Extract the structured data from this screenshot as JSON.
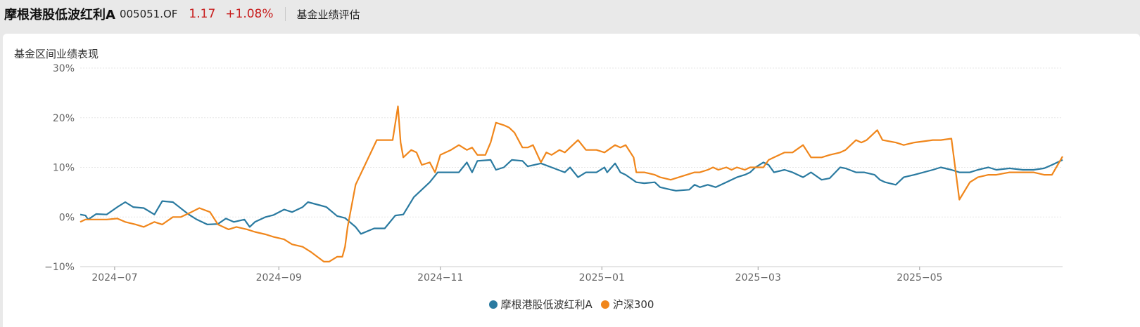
{
  "header": {
    "fund_name": "摩根港股低波红利A",
    "fund_code": "005051.OF",
    "nav": "1.17",
    "change": "+1.08%",
    "section_tab": "基金业绩评估"
  },
  "card": {
    "title": "基金区间业绩表现"
  },
  "colors": {
    "fund": "#2a7aa0",
    "index": "#f0861b",
    "up": "#c81e1e"
  },
  "chart_data": {
    "type": "line",
    "x_range": [
      "2024-06-18",
      "2025-06-24"
    ],
    "ylim": [
      -10,
      30
    ],
    "yticks": [
      30,
      20,
      10,
      0,
      -10
    ],
    "ytick_labels": [
      "30%",
      "20%",
      "10%",
      "0%",
      "−10%"
    ],
    "xticks": [
      "2024-07-01",
      "2024-09-01",
      "2024-11-01",
      "2025-01-01",
      "2025-03-01",
      "2025-05-01"
    ],
    "xtick_labels": [
      "2024−07",
      "2024−09",
      "2024−11",
      "2025−01",
      "2025−03",
      "2025−05"
    ],
    "grid": true,
    "legend_position": "bottom-center",
    "series": [
      {
        "name": "摩根港股低波红利A",
        "color": "#2a7aa0",
        "points": [
          [
            "2024-06-18",
            0.5
          ],
          [
            "2024-06-20",
            0.3
          ],
          [
            "2024-06-21",
            -0.5
          ],
          [
            "2024-06-24",
            0.6
          ],
          [
            "2024-06-28",
            0.5
          ],
          [
            "2024-07-02",
            2.0
          ],
          [
            "2024-07-05",
            3.0
          ],
          [
            "2024-07-08",
            2.0
          ],
          [
            "2024-07-12",
            1.8
          ],
          [
            "2024-07-16",
            0.5
          ],
          [
            "2024-07-19",
            3.2
          ],
          [
            "2024-07-23",
            3.0
          ],
          [
            "2024-07-29",
            0.5
          ],
          [
            "2024-08-01",
            -0.5
          ],
          [
            "2024-08-05",
            -1.5
          ],
          [
            "2024-08-09",
            -1.4
          ],
          [
            "2024-08-12",
            -0.3
          ],
          [
            "2024-08-15",
            -1.0
          ],
          [
            "2024-08-19",
            -0.5
          ],
          [
            "2024-08-21",
            -2.0
          ],
          [
            "2024-08-23",
            -1.0
          ],
          [
            "2024-08-27",
            0.0
          ],
          [
            "2024-08-30",
            0.4
          ],
          [
            "2024-09-03",
            1.5
          ],
          [
            "2024-09-06",
            1.0
          ],
          [
            "2024-09-10",
            2.0
          ],
          [
            "2024-09-12",
            3.0
          ],
          [
            "2024-09-17",
            2.3
          ],
          [
            "2024-09-19",
            2.0
          ],
          [
            "2024-09-23",
            0.2
          ],
          [
            "2024-09-26",
            -0.2
          ],
          [
            "2024-09-30",
            -2.0
          ],
          [
            "2024-10-02",
            -3.4
          ],
          [
            "2024-10-07",
            -2.3
          ],
          [
            "2024-10-11",
            -2.3
          ],
          [
            "2024-10-15",
            0.3
          ],
          [
            "2024-10-18",
            0.5
          ],
          [
            "2024-10-22",
            4.0
          ],
          [
            "2024-10-25",
            5.5
          ],
          [
            "2024-10-28",
            7.0
          ],
          [
            "2024-10-31",
            9.0
          ],
          [
            "2024-11-08",
            9.0
          ],
          [
            "2024-11-11",
            11.0
          ],
          [
            "2024-11-13",
            9.0
          ],
          [
            "2024-11-15",
            11.3
          ],
          [
            "2024-11-20",
            11.5
          ],
          [
            "2024-11-22",
            9.5
          ],
          [
            "2024-11-25",
            10.0
          ],
          [
            "2024-11-28",
            11.5
          ],
          [
            "2024-12-02",
            11.3
          ],
          [
            "2024-12-04",
            10.2
          ],
          [
            "2024-12-09",
            10.8
          ],
          [
            "2024-12-13",
            10.0
          ],
          [
            "2024-12-18",
            9.0
          ],
          [
            "2024-12-20",
            10.0
          ],
          [
            "2024-12-23",
            8.0
          ],
          [
            "2024-12-26",
            9.0
          ],
          [
            "2024-12-30",
            9.0
          ],
          [
            "2025-01-02",
            10.0
          ],
          [
            "2025-01-03",
            9.0
          ],
          [
            "2025-01-06",
            10.8
          ],
          [
            "2025-01-08",
            9.0
          ],
          [
            "2025-01-10",
            8.5
          ],
          [
            "2025-01-14",
            7.0
          ],
          [
            "2025-01-17",
            6.8
          ],
          [
            "2025-01-21",
            7.0
          ],
          [
            "2025-01-23",
            6.0
          ],
          [
            "2025-01-27",
            5.5
          ],
          [
            "2025-01-29",
            5.3
          ],
          [
            "2025-02-03",
            5.5
          ],
          [
            "2025-02-05",
            6.5
          ],
          [
            "2025-02-07",
            6.0
          ],
          [
            "2025-02-10",
            6.5
          ],
          [
            "2025-02-13",
            6.0
          ],
          [
            "2025-02-17",
            7.0
          ],
          [
            "2025-02-21",
            8.0
          ],
          [
            "2025-02-24",
            8.5
          ],
          [
            "2025-02-26",
            9.0
          ],
          [
            "2025-02-28",
            10.0
          ],
          [
            "2025-03-03",
            11.0
          ],
          [
            "2025-03-05",
            10.5
          ],
          [
            "2025-03-07",
            9.0
          ],
          [
            "2025-03-11",
            9.5
          ],
          [
            "2025-03-14",
            9.0
          ],
          [
            "2025-03-18",
            8.0
          ],
          [
            "2025-03-21",
            9.0
          ],
          [
            "2025-03-25",
            7.5
          ],
          [
            "2025-03-28",
            7.8
          ],
          [
            "2025-04-01",
            10.0
          ],
          [
            "2025-04-03",
            9.8
          ],
          [
            "2025-04-07",
            9.0
          ],
          [
            "2025-04-10",
            9.0
          ],
          [
            "2025-04-14",
            8.5
          ],
          [
            "2025-04-16",
            7.5
          ],
          [
            "2025-04-18",
            7.0
          ],
          [
            "2025-04-22",
            6.5
          ],
          [
            "2025-04-25",
            8.0
          ],
          [
            "2025-04-29",
            8.5
          ],
          [
            "2025-05-06",
            9.5
          ],
          [
            "2025-05-09",
            10.0
          ],
          [
            "2025-05-13",
            9.5
          ],
          [
            "2025-05-16",
            9.0
          ],
          [
            "2025-05-20",
            9.0
          ],
          [
            "2025-05-23",
            9.5
          ],
          [
            "2025-05-27",
            10.0
          ],
          [
            "2025-05-30",
            9.5
          ],
          [
            "2025-06-04",
            9.8
          ],
          [
            "2025-06-09",
            9.5
          ],
          [
            "2025-06-13",
            9.5
          ],
          [
            "2025-06-17",
            9.8
          ],
          [
            "2025-06-20",
            10.5
          ],
          [
            "2025-06-24",
            11.5
          ]
        ]
      },
      {
        "name": "沪深300",
        "color": "#f0861b",
        "points": [
          [
            "2024-06-18",
            -1.0
          ],
          [
            "2024-06-20",
            -0.5
          ],
          [
            "2024-06-24",
            -0.5
          ],
          [
            "2024-06-28",
            -0.5
          ],
          [
            "2024-07-02",
            -0.3
          ],
          [
            "2024-07-05",
            -1.0
          ],
          [
            "2024-07-09",
            -1.5
          ],
          [
            "2024-07-12",
            -2.0
          ],
          [
            "2024-07-16",
            -1.0
          ],
          [
            "2024-07-19",
            -1.5
          ],
          [
            "2024-07-23",
            0.0
          ],
          [
            "2024-07-26",
            0.0
          ],
          [
            "2024-07-30",
            1.0
          ],
          [
            "2024-08-02",
            1.8
          ],
          [
            "2024-08-06",
            1.0
          ],
          [
            "2024-08-09",
            -1.5
          ],
          [
            "2024-08-13",
            -2.5
          ],
          [
            "2024-08-16",
            -2.0
          ],
          [
            "2024-08-20",
            -2.5
          ],
          [
            "2024-08-23",
            -3.0
          ],
          [
            "2024-08-27",
            -3.5
          ],
          [
            "2024-08-30",
            -4.0
          ],
          [
            "2024-09-03",
            -4.5
          ],
          [
            "2024-09-06",
            -5.5
          ],
          [
            "2024-09-10",
            -6.0
          ],
          [
            "2024-09-13",
            -7.0
          ],
          [
            "2024-09-18",
            -9.0
          ],
          [
            "2024-09-20",
            -9.0
          ],
          [
            "2024-09-23",
            -8.0
          ],
          [
            "2024-09-25",
            -8.0
          ],
          [
            "2024-09-26",
            -6.0
          ],
          [
            "2024-09-27",
            -2.0
          ],
          [
            "2024-09-30",
            6.5
          ],
          [
            "2024-10-08",
            15.5
          ],
          [
            "2024-10-09",
            15.5
          ],
          [
            "2024-10-10",
            15.5
          ],
          [
            "2024-10-11",
            15.5
          ],
          [
            "2024-10-14",
            15.5
          ],
          [
            "2024-10-16",
            22.3
          ],
          [
            "2024-10-17",
            15.0
          ],
          [
            "2024-10-18",
            12.0
          ],
          [
            "2024-10-21",
            13.5
          ],
          [
            "2024-10-23",
            13.0
          ],
          [
            "2024-10-25",
            10.5
          ],
          [
            "2024-10-28",
            11.0
          ],
          [
            "2024-10-30",
            9.0
          ],
          [
            "2024-11-01",
            12.5
          ],
          [
            "2024-11-05",
            13.5
          ],
          [
            "2024-11-08",
            14.5
          ],
          [
            "2024-11-11",
            13.5
          ],
          [
            "2024-11-13",
            14.0
          ],
          [
            "2024-11-15",
            12.5
          ],
          [
            "2024-11-18",
            12.5
          ],
          [
            "2024-11-20",
            15.0
          ],
          [
            "2024-11-22",
            19.0
          ],
          [
            "2024-11-25",
            18.5
          ],
          [
            "2024-11-27",
            18.0
          ],
          [
            "2024-11-29",
            17.0
          ],
          [
            "2024-12-02",
            14.0
          ],
          [
            "2024-12-04",
            14.0
          ],
          [
            "2024-12-06",
            14.5
          ],
          [
            "2024-12-09",
            11.0
          ],
          [
            "2024-12-11",
            13.0
          ],
          [
            "2024-12-13",
            12.5
          ],
          [
            "2024-12-16",
            13.5
          ],
          [
            "2024-12-18",
            13.0
          ],
          [
            "2024-12-20",
            14.0
          ],
          [
            "2024-12-23",
            15.5
          ],
          [
            "2024-12-26",
            13.5
          ],
          [
            "2024-12-30",
            13.5
          ],
          [
            "2025-01-02",
            13.0
          ],
          [
            "2025-01-06",
            14.5
          ],
          [
            "2025-01-08",
            14.0
          ],
          [
            "2025-01-10",
            14.5
          ],
          [
            "2025-01-13",
            12.0
          ],
          [
            "2025-01-14",
            9.0
          ],
          [
            "2025-01-17",
            9.0
          ],
          [
            "2025-01-21",
            8.5
          ],
          [
            "2025-01-23",
            8.0
          ],
          [
            "2025-01-27",
            7.5
          ],
          [
            "2025-02-05",
            9.0
          ],
          [
            "2025-02-07",
            9.0
          ],
          [
            "2025-02-10",
            9.5
          ],
          [
            "2025-02-12",
            10.0
          ],
          [
            "2025-02-14",
            9.5
          ],
          [
            "2025-02-17",
            10.0
          ],
          [
            "2025-02-19",
            9.5
          ],
          [
            "2025-02-21",
            10.0
          ],
          [
            "2025-02-24",
            9.5
          ],
          [
            "2025-02-26",
            10.0
          ],
          [
            "2025-02-28",
            10.0
          ],
          [
            "2025-03-03",
            10.0
          ],
          [
            "2025-03-05",
            11.5
          ],
          [
            "2025-03-07",
            12.0
          ],
          [
            "2025-03-11",
            13.0
          ],
          [
            "2025-03-14",
            13.0
          ],
          [
            "2025-03-18",
            14.5
          ],
          [
            "2025-03-21",
            12.0
          ],
          [
            "2025-03-25",
            12.0
          ],
          [
            "2025-03-28",
            12.5
          ],
          [
            "2025-04-01",
            13.0
          ],
          [
            "2025-04-03",
            13.5
          ],
          [
            "2025-04-07",
            15.5
          ],
          [
            "2025-04-09",
            15.0
          ],
          [
            "2025-04-11",
            15.5
          ],
          [
            "2025-04-15",
            17.5
          ],
          [
            "2025-04-17",
            15.5
          ],
          [
            "2025-04-22",
            15.0
          ],
          [
            "2025-04-25",
            14.5
          ],
          [
            "2025-04-29",
            15.0
          ],
          [
            "2025-05-06",
            15.5
          ],
          [
            "2025-05-09",
            15.5
          ],
          [
            "2025-05-13",
            15.8
          ],
          [
            "2025-05-16",
            3.5
          ],
          [
            "2025-05-20",
            7.0
          ],
          [
            "2025-05-23",
            8.0
          ],
          [
            "2025-05-27",
            8.5
          ],
          [
            "2025-05-30",
            8.5
          ],
          [
            "2025-06-04",
            9.0
          ],
          [
            "2025-06-09",
            9.0
          ],
          [
            "2025-06-13",
            9.0
          ],
          [
            "2025-06-17",
            8.5
          ],
          [
            "2025-06-20",
            8.5
          ],
          [
            "2025-06-24",
            12.2
          ]
        ]
      }
    ]
  },
  "legend": [
    {
      "label": "摩根港股低波红利A",
      "color": "#2a7aa0"
    },
    {
      "label": "沪深300",
      "color": "#f0861b"
    }
  ]
}
